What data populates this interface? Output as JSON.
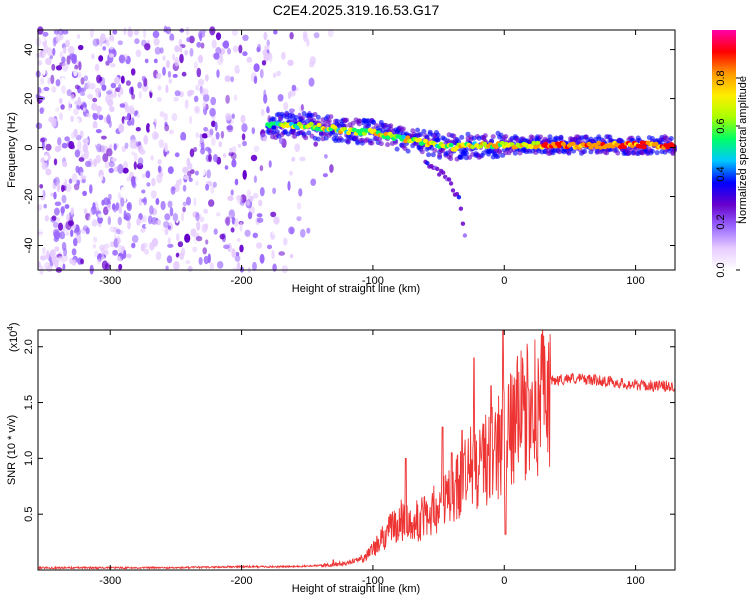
{
  "title": "C2E4.2025.319.16.53.G17",
  "chart_data": [
    {
      "type": "heatmap",
      "name": "spectrogram",
      "xlabel": "Height of straight line (km)",
      "ylabel": "Frequency (Hz)",
      "xlim": [
        -355,
        130
      ],
      "ylim": [
        -50,
        48
      ],
      "xticks": [
        -300,
        -200,
        -100,
        0,
        100
      ],
      "yticks": [
        -40,
        -20,
        0,
        20,
        40
      ],
      "colorbar": {
        "label": "Normalized spectral amplitude",
        "range": [
          0,
          1
        ],
        "ticks": [
          "0.0",
          "0.2",
          "0.4",
          "0.6",
          "0.8"
        ],
        "colors": [
          "#ffffff",
          "#e6ccff",
          "#9966ff",
          "#6600cc",
          "#0000ff",
          "#00c8ff",
          "#00ff66",
          "#aaff00",
          "#ffee00",
          "#ff9900",
          "#ff0000",
          "#ff00aa"
        ]
      },
      "noise_region_km": [
        -355,
        -130
      ],
      "signal_track": [
        {
          "x": -180,
          "y": 9
        },
        {
          "x": -150,
          "y": 9
        },
        {
          "x": -120,
          "y": 7
        },
        {
          "x": -100,
          "y": 6
        },
        {
          "x": -80,
          "y": 4
        },
        {
          "x": -60,
          "y": 2
        },
        {
          "x": -40,
          "y": 0
        },
        {
          "x": -20,
          "y": 1
        },
        {
          "x": 0,
          "y": 1
        },
        {
          "x": 50,
          "y": 1
        },
        {
          "x": 100,
          "y": 1
        },
        {
          "x": 130,
          "y": 1
        }
      ],
      "secondary_branch": [
        {
          "x": -60,
          "y": -5
        },
        {
          "x": -45,
          "y": -12
        },
        {
          "x": -35,
          "y": -20
        },
        {
          "x": -30,
          "y": -35
        }
      ]
    },
    {
      "type": "line",
      "name": "snr",
      "xlabel": "Height of straight line (km)",
      "ylabel": "SNR (10 * v/v)",
      "y_scale_label": "(x10",
      "y_scale_exponent": "4",
      "xlim": [
        -355,
        130
      ],
      "ylim": [
        0,
        2.15
      ],
      "xticks": [
        -300,
        -200,
        -100,
        0,
        100
      ],
      "yticks": [
        "0.5",
        "1.0",
        "1.5",
        "2.0"
      ],
      "color": "#ee3333",
      "series": [
        {
          "name": "SNR",
          "x": [
            -355,
            -300,
            -250,
            -200,
            -160,
            -140,
            -130,
            -120,
            -110,
            -100,
            -90,
            -80,
            -70,
            -60,
            -50,
            -40,
            -30,
            -20,
            -10,
            0,
            5,
            10,
            20,
            30,
            40,
            50,
            60,
            70,
            80,
            90,
            100,
            110,
            120,
            130
          ],
          "y": [
            0.02,
            0.02,
            0.02,
            0.03,
            0.03,
            0.04,
            0.05,
            0.06,
            0.1,
            0.2,
            0.35,
            0.5,
            0.45,
            0.55,
            0.6,
            0.75,
            0.95,
            1.05,
            1.15,
            1.3,
            1.4,
            1.5,
            1.6,
            1.68,
            1.7,
            1.72,
            1.71,
            1.7,
            1.69,
            1.67,
            1.66,
            1.65,
            1.65,
            1.64
          ],
          "spikes": [
            {
              "x": -75,
              "y": 1.0
            },
            {
              "x": -47,
              "y": 1.28
            },
            {
              "x": -40,
              "y": 1.05
            },
            {
              "x": -32,
              "y": 1.25
            },
            {
              "x": -23,
              "y": 1.9
            },
            {
              "x": -10,
              "y": 1.65
            },
            {
              "x": -1,
              "y": 2.15
            },
            {
              "x": 1,
              "y": 0.32
            },
            {
              "x": -130,
              "y": 0.09
            }
          ]
        }
      ]
    }
  ]
}
